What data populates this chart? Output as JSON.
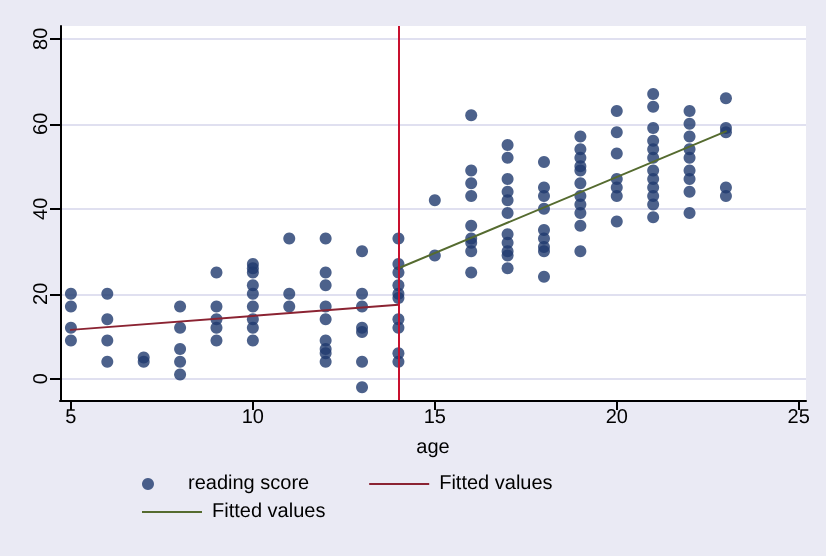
{
  "chart_data": {
    "type": "scatter",
    "xlabel": "age",
    "xlim": [
      4.7,
      25.2
    ],
    "xticks": [
      5,
      10,
      15,
      20,
      25
    ],
    "ylim": [
      -5,
      83
    ],
    "yticks": [
      0,
      20,
      40,
      60,
      80
    ],
    "grid": "y",
    "legend": "bottom",
    "marker": "circle",
    "series": [
      {
        "name": "reading score",
        "color": "#1f3a6e",
        "x": [
          5,
          5,
          5,
          5,
          6,
          6,
          6,
          6,
          7,
          7,
          8,
          8,
          8,
          8,
          8,
          9,
          9,
          9,
          9,
          9,
          10,
          10,
          10,
          10,
          10,
          10,
          10,
          10,
          10,
          11,
          11,
          11,
          12,
          12,
          12,
          12,
          12,
          12,
          12,
          12,
          12,
          13,
          13,
          13,
          13,
          13,
          13,
          13,
          14,
          14,
          14,
          14,
          14,
          14,
          14,
          14,
          14,
          14,
          15,
          15,
          16,
          16,
          16,
          16,
          16,
          16,
          16,
          16,
          16,
          17,
          17,
          17,
          17,
          17,
          17,
          17,
          17,
          17,
          17,
          17,
          18,
          18,
          18,
          18,
          18,
          18,
          18,
          18,
          18,
          19,
          19,
          19,
          19,
          19,
          19,
          19,
          19,
          19,
          19,
          19,
          20,
          20,
          20,
          20,
          20,
          20,
          20,
          21,
          21,
          21,
          21,
          21,
          21,
          21,
          21,
          21,
          21,
          21,
          21,
          22,
          22,
          22,
          22,
          22,
          22,
          22,
          22,
          22,
          23,
          23,
          23,
          23,
          23
        ],
        "values": [
          20,
          17,
          12,
          9,
          20,
          14,
          9,
          4,
          5,
          4,
          17,
          12,
          7,
          4,
          1,
          25,
          17,
          14,
          12,
          9,
          27,
          26,
          25,
          22,
          20,
          17,
          14,
          12,
          9,
          33,
          20,
          17,
          33,
          25,
          22,
          17,
          14,
          9,
          7,
          6,
          4,
          30,
          20,
          17,
          12,
          11,
          4,
          -2,
          33,
          27,
          25,
          22,
          20,
          19,
          14,
          12,
          6,
          4,
          42,
          29,
          62,
          49,
          46,
          43,
          36,
          33,
          32,
          30,
          25,
          55,
          52,
          47,
          44,
          42,
          39,
          34,
          32,
          30,
          29,
          26,
          51,
          45,
          43,
          40,
          35,
          33,
          31,
          30,
          24,
          57,
          54,
          52,
          50,
          49,
          46,
          43,
          41,
          39,
          36,
          30,
          63,
          58,
          53,
          47,
          45,
          43,
          37,
          67,
          64,
          59,
          56,
          54,
          52,
          49,
          47,
          45,
          43,
          41,
          38,
          63,
          60,
          57,
          54,
          52,
          49,
          47,
          44,
          39,
          66,
          59,
          58,
          45,
          43
        ]
      },
      {
        "name": "Fitted values",
        "type": "line",
        "marker": "none",
        "line_style": "solid",
        "color": "#8b2332",
        "x": [
          5,
          14
        ],
        "values": [
          11.5,
          17.4
        ]
      },
      {
        "name": "Fitted values",
        "type": "line",
        "marker": "none",
        "line_style": "solid",
        "color": "#556b2f",
        "x": [
          14,
          23
        ],
        "values": [
          26,
          58.2
        ]
      }
    ],
    "ref_lines": [
      {
        "axis": "x",
        "value": 14,
        "color": "#c8102e"
      }
    ]
  }
}
